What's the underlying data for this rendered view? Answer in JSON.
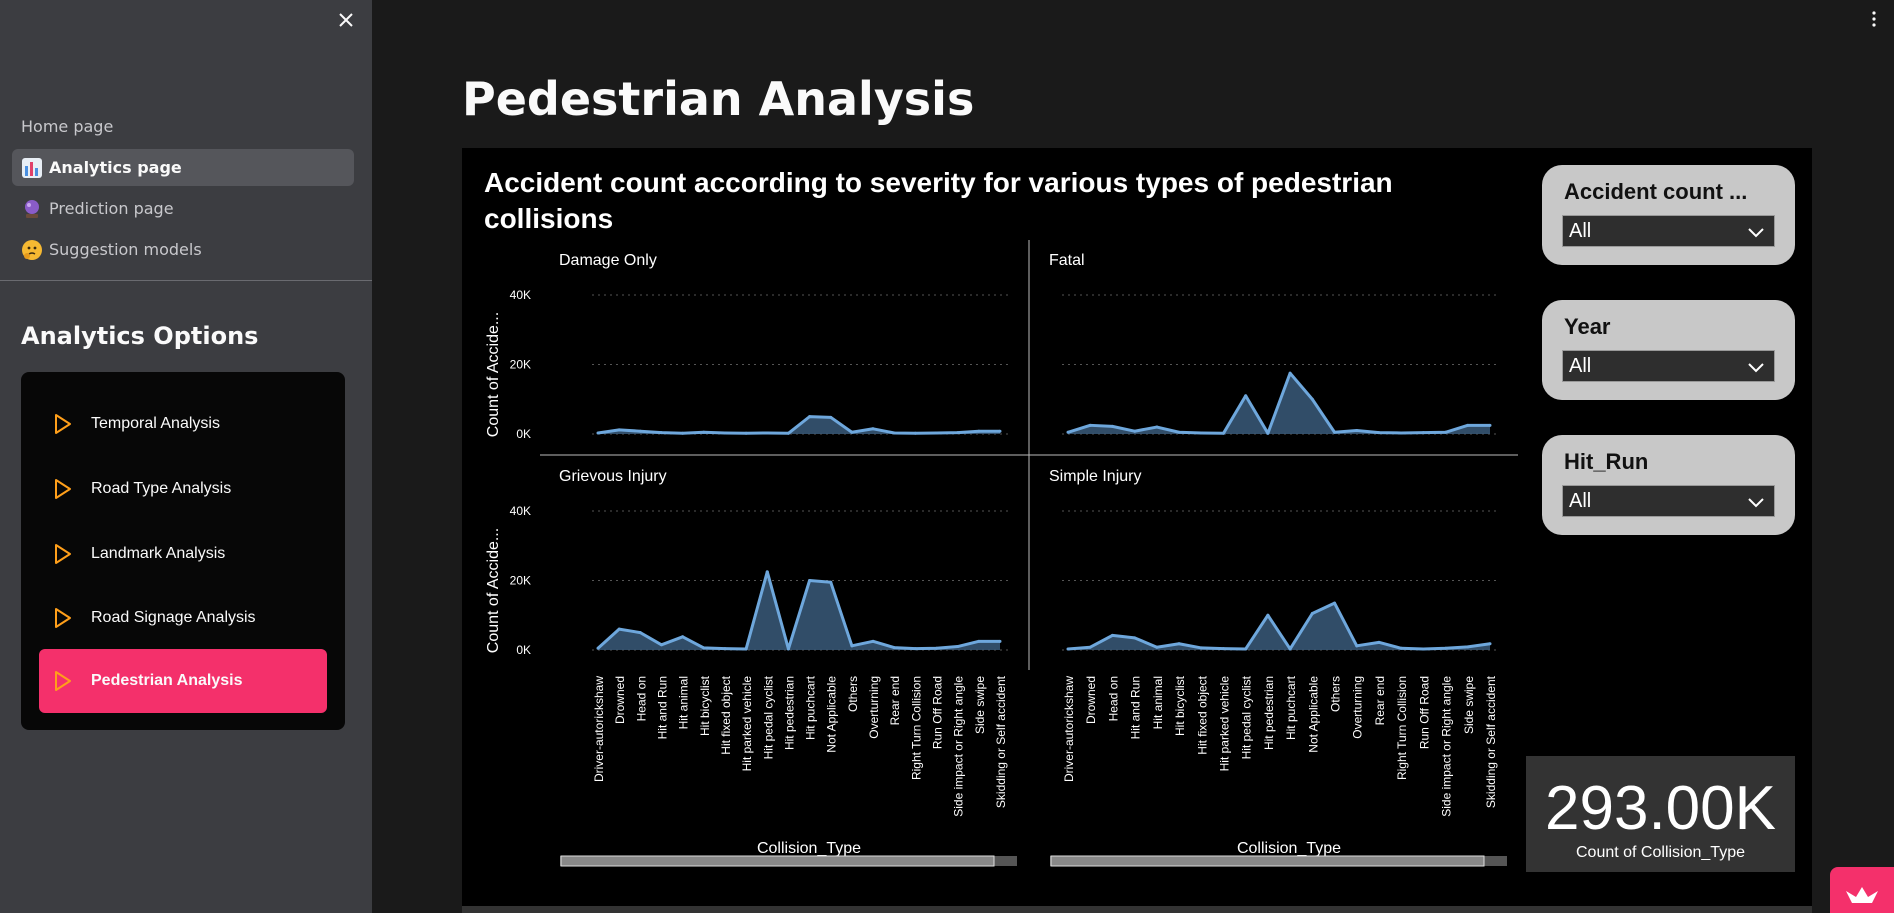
{
  "sidebar": {
    "nav": [
      {
        "label": "Home page",
        "icon": ""
      },
      {
        "label": "Analytics page",
        "icon": "bar-chart-icon"
      },
      {
        "label": "Prediction page",
        "icon": "crystal-ball-icon"
      },
      {
        "label": "Suggestion models",
        "icon": "thinking-face-icon"
      }
    ],
    "options_title": "Analytics Options",
    "options": [
      {
        "label": "Temporal Analysis"
      },
      {
        "label": "Road Type Analysis"
      },
      {
        "label": "Landmark Analysis"
      },
      {
        "label": "Road Signage Analysis"
      },
      {
        "label": "Pedestrian Analysis"
      }
    ],
    "active_option": "Pedestrian Analysis",
    "accent_color": "#f4306b",
    "option_icon_color": "#ff9f1a"
  },
  "main": {
    "page_title": "Pedestrian Analysis"
  },
  "filters": [
    {
      "label": "Accident count ...",
      "value": "All"
    },
    {
      "label": "Year",
      "value": "All"
    },
    {
      "label": "Hit_Run",
      "value": "All"
    }
  ],
  "kpi": {
    "value": "293.00K",
    "label": "Count of Collision_Type"
  },
  "chart_data": {
    "type": "area",
    "title": "Accident count according to severity for various types of pedestrian collisions",
    "xlabel": "Collision_Type",
    "ylabel": "Count of Accide...",
    "ylim": [
      0,
      45000
    ],
    "yticks": [
      0,
      20000,
      40000
    ],
    "ytick_labels": [
      "0K",
      "20K",
      "40K"
    ],
    "grid": true,
    "series_color": "#6ea7dc",
    "fill_color": "#3a5a7a",
    "categories": [
      "Driver-autorickshaw",
      "Drowned",
      "Head on",
      "Hit and Run",
      "Hit animal",
      "Hit bicyclist",
      "Hit fixed object",
      "Hit parked vehicle",
      "Hit pedal cyclist",
      "Hit pedestrian",
      "Hit puchcart",
      "Not Applicable",
      "Others",
      "Overturning",
      "Rear end",
      "Right Turn Collision",
      "Run Off Road",
      "Side impact or Right angle",
      "Side swipe",
      "Skidding or Self accident"
    ],
    "panels": [
      {
        "name": "Damage Only",
        "values": [
          300,
          1200,
          800,
          400,
          200,
          500,
          300,
          200,
          300,
          200,
          5000,
          4800,
          500,
          1500,
          300,
          200,
          300,
          400,
          800,
          800
        ]
      },
      {
        "name": "Fatal",
        "values": [
          500,
          2500,
          2200,
          800,
          2000,
          500,
          300,
          200,
          11000,
          200,
          17500,
          10000,
          500,
          1000,
          400,
          300,
          400,
          500,
          2500,
          2500
        ]
      },
      {
        "name": "Grievous Injury",
        "values": [
          500,
          6000,
          5000,
          1500,
          3800,
          600,
          400,
          300,
          22500,
          300,
          20000,
          19500,
          1200,
          2500,
          700,
          400,
          500,
          1000,
          2500,
          2500
        ]
      },
      {
        "name": "Simple Injury",
        "values": [
          300,
          800,
          4200,
          3500,
          800,
          1800,
          600,
          400,
          300,
          10000,
          300,
          10500,
          13500,
          1200,
          2200,
          500,
          300,
          500,
          900,
          1800
        ]
      }
    ]
  }
}
